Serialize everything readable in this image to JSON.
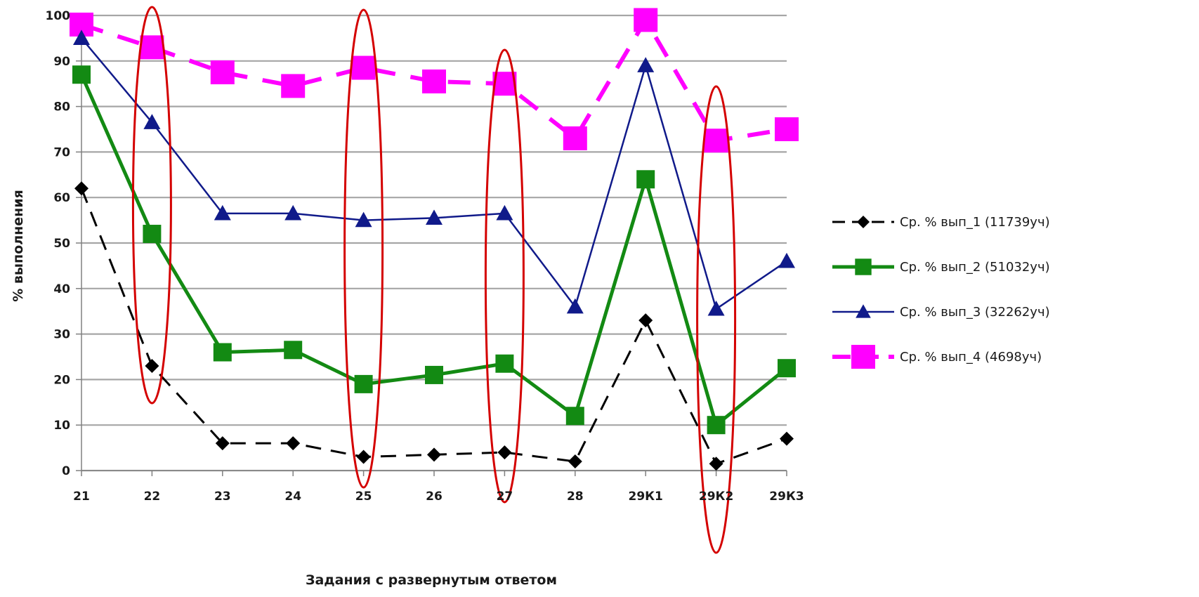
{
  "chart_data": {
    "type": "line",
    "title": "",
    "xlabel": "Задания с развернутым ответом",
    "ylabel": "% выполнения",
    "ylim": [
      0,
      100
    ],
    "yticks": [
      0,
      10,
      20,
      30,
      40,
      50,
      60,
      70,
      80,
      90,
      100
    ],
    "grid": true,
    "legend_position": "right",
    "categories": [
      "21",
      "22",
      "23",
      "24",
      "25",
      "26",
      "27",
      "28",
      "29К1",
      "29К2",
      "29К3"
    ],
    "series": [
      {
        "name": "Ср. % вып_1 (11739уч)",
        "color": "#000000",
        "marker": "diamond",
        "dash": "dashed",
        "values": [
          62,
          23,
          6,
          6,
          3,
          3.5,
          4,
          2,
          33,
          1.5,
          7
        ]
      },
      {
        "name": "Ср. % вып_2 (51032уч)",
        "color": "#138a13",
        "marker": "square",
        "dash": "solid",
        "values": [
          87,
          52,
          26,
          26.5,
          19,
          21,
          23.5,
          12,
          64,
          10,
          22.5
        ]
      },
      {
        "name": "Ср. % вып_3 (32262уч)",
        "color": "#101a8a",
        "marker": "triangle",
        "dash": "solid",
        "values": [
          95,
          76.5,
          56.5,
          56.5,
          55,
          55.5,
          56.5,
          36,
          89,
          35.5,
          46
        ]
      },
      {
        "name": "Ср. % вып_4 (4698уч)",
        "color": "#ff00ff",
        "marker": "square",
        "dash": "dashed",
        "values": [
          98,
          93,
          87.5,
          84.5,
          88.5,
          85.5,
          85,
          73,
          99,
          72.5,
          75
        ]
      }
    ],
    "annotations": {
      "type": "ellipse",
      "color": "#d40000",
      "categories": [
        "22",
        "25",
        "27",
        "29К2"
      ]
    }
  }
}
